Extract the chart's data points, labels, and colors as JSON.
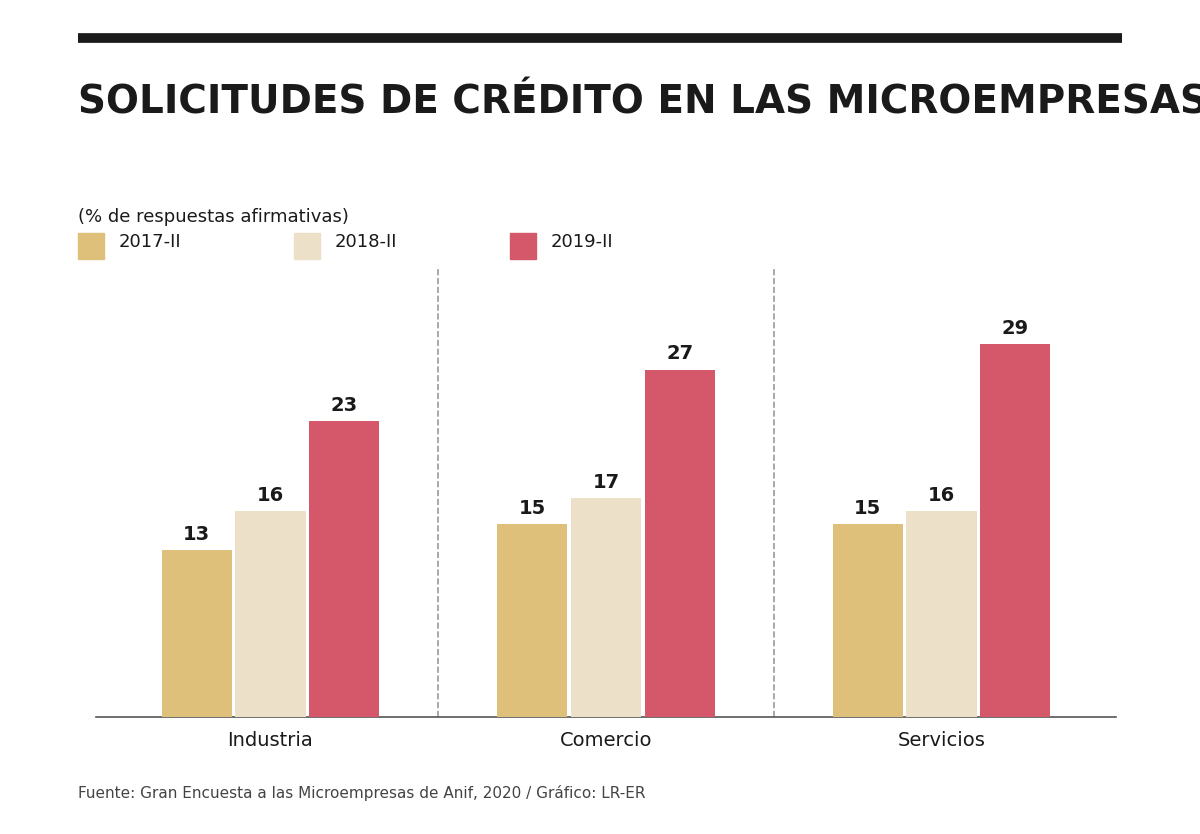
{
  "title": "SOLICITUDES DE CRÉDITO EN LAS MICROEMPRESAS",
  "subtitle": "(% de respuestas afirmativas)",
  "categories": [
    "Industria",
    "Comercio",
    "Servicios"
  ],
  "series": [
    {
      "label": "2017-II",
      "values": [
        13,
        15,
        15
      ],
      "color": "#DFC07A"
    },
    {
      "label": "2018-II",
      "values": [
        16,
        17,
        16
      ],
      "color": "#EDE0C8"
    },
    {
      "label": "2019-II",
      "values": [
        23,
        27,
        29
      ],
      "color": "#D4576A"
    }
  ],
  "footer": "Fuente: Gran Encuesta a las Microempresas de Anif, 2020 / Gráfico: LR-ER",
  "background_color": "#FFFFFF",
  "bar_width": 0.22,
  "ylim": [
    0,
    35
  ],
  "value_fontsize": 14,
  "label_fontsize": 14,
  "title_fontsize": 28,
  "subtitle_fontsize": 13,
  "legend_fontsize": 13,
  "footer_fontsize": 11,
  "text_color": "#1A1A1A",
  "divider_color": "#999999",
  "top_rule_color": "#1A1A1A"
}
